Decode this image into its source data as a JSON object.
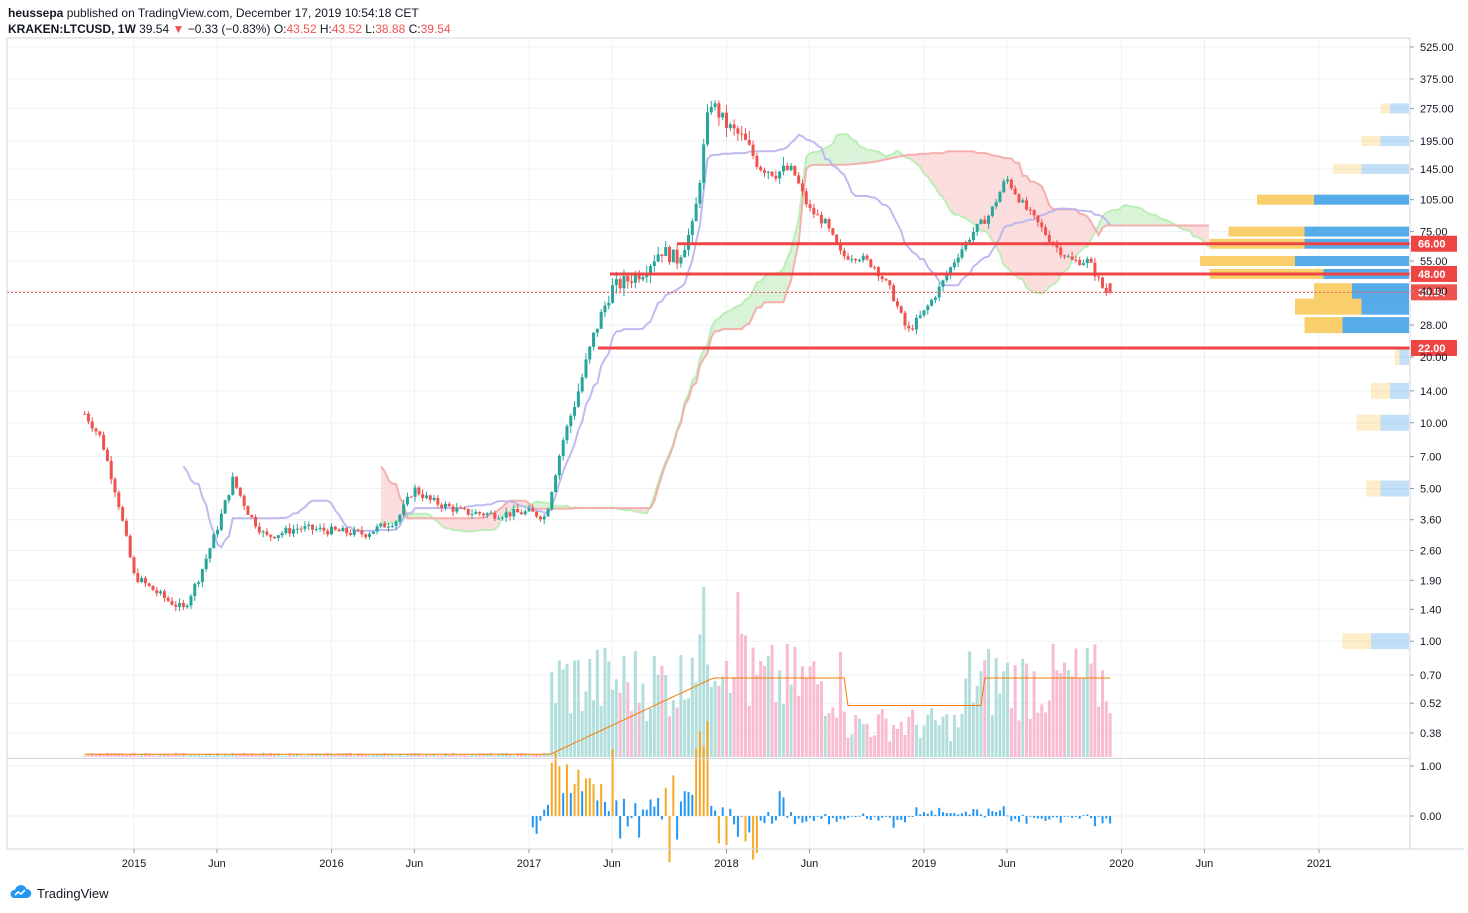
{
  "header": {
    "author": "heussepa",
    "published": "published on TradingView.com, December 17, 2019 10:54:18 CET",
    "symbol": "KRAKEN:LTCUSD, 1W",
    "last": "39.54",
    "arrow": "▼",
    "change": "−0.33 (−0.83%)",
    "o_label": "O:",
    "o": "43.52",
    "h_label": "H:",
    "h": "43.52",
    "l_label": "L:",
    "l": "38.88",
    "c_label": "C:",
    "c": "39.54"
  },
  "footer": {
    "brand": "TradingView",
    "logo_icon": "tradingview-cloud-icon"
  },
  "colors": {
    "up": "#26a69a",
    "down": "#ef5350",
    "level": "#ef4444",
    "vp_up": "#4da7e8",
    "vp_down": "#f9cc63",
    "vol_up": "#b2dfdb",
    "vol_down": "#f8bbd0",
    "kumo_red": "#fbd5d5",
    "kumo_green": "#d0f0d0",
    "tenkan": "#b9b2f0",
    "span_a": "#b6edb0",
    "span_b": "#f4a8a8",
    "vol_ma": "#f57c00"
  },
  "chart_data": {
    "type": "candlestick",
    "symbol": "KRAKEN:LTCUSD",
    "interval": "1W",
    "y_scale": "log",
    "y_ticks": [
      525,
      375,
      275,
      195,
      145,
      105,
      75,
      55,
      40,
      28,
      20,
      14,
      10,
      7,
      5,
      3.6,
      2.6,
      1.9,
      1.4,
      1.0,
      0.7,
      0.52,
      0.38
    ],
    "x_ticks": [
      "2015",
      "Jun",
      "2016",
      "Jun",
      "2017",
      "Jun",
      "2018",
      "Jun",
      "2019",
      "Jun",
      "2020",
      "Jun",
      "2021"
    ],
    "oscillator_ticks": [
      1.0,
      0.0
    ],
    "last_price": 39.54,
    "horizontal_levels": [
      66.0,
      48.0,
      22.0
    ],
    "price_path": [
      [
        "2014-10",
        11
      ],
      [
        "2014-11",
        8.5
      ],
      [
        "2014-12",
        4.5
      ],
      [
        "2015-01",
        2.0
      ],
      [
        "2015-02",
        1.75
      ],
      [
        "2015-03",
        1.55
      ],
      [
        "2015-04",
        1.4
      ],
      [
        "2015-05",
        2.0
      ],
      [
        "2015-06",
        3.2
      ],
      [
        "2015-07",
        5.5
      ],
      [
        "2015-08",
        3.8
      ],
      [
        "2015-09",
        3.0
      ],
      [
        "2015-11",
        3.3
      ],
      [
        "2016-01",
        3.2
      ],
      [
        "2016-03",
        3.1
      ],
      [
        "2016-05",
        3.6
      ],
      [
        "2016-06",
        5.0
      ],
      [
        "2016-07",
        4.4
      ],
      [
        "2016-09",
        3.9
      ],
      [
        "2016-11",
        3.8
      ],
      [
        "2017-01",
        3.9
      ],
      [
        "2017-02",
        3.7
      ],
      [
        "2017-03",
        8.0
      ],
      [
        "2017-04",
        14.0
      ],
      [
        "2017-05",
        26.0
      ],
      [
        "2017-06",
        41.0
      ],
      [
        "2017-07",
        45.0
      ],
      [
        "2017-08",
        50.0
      ],
      [
        "2017-09",
        62.0
      ],
      [
        "2017-10",
        56.0
      ],
      [
        "2017-11",
        80.0
      ],
      [
        "2017-12",
        300.0
      ],
      [
        "2018-01",
        230.0
      ],
      [
        "2018-02",
        200.0
      ],
      [
        "2018-03",
        150.0
      ],
      [
        "2018-04",
        140.0
      ],
      [
        "2018-05",
        145.0
      ],
      [
        "2018-06",
        95.0
      ],
      [
        "2018-07",
        82.0
      ],
      [
        "2018-08",
        58.0
      ],
      [
        "2018-09",
        58.0
      ],
      [
        "2018-10",
        52.0
      ],
      [
        "2018-11",
        40.0
      ],
      [
        "2018-12",
        26.0
      ],
      [
        "2019-01",
        32.0
      ],
      [
        "2019-02",
        42.0
      ],
      [
        "2019-03",
        58.0
      ],
      [
        "2019-04",
        75.0
      ],
      [
        "2019-05",
        90.0
      ],
      [
        "2019-06",
        132.0
      ],
      [
        "2019-07",
        100.0
      ],
      [
        "2019-08",
        80.0
      ],
      [
        "2019-09",
        64.0
      ],
      [
        "2019-10",
        55.0
      ],
      [
        "2019-11",
        55.0
      ],
      [
        "2019-12",
        39.54
      ]
    ],
    "volume_profile": [
      {
        "price": 275,
        "up": 2,
        "down": 1
      },
      {
        "price": 195,
        "up": 3,
        "down": 2
      },
      {
        "price": 145,
        "up": 5,
        "down": 3
      },
      {
        "price": 105,
        "up": 10,
        "down": 6
      },
      {
        "price": 75,
        "up": 11,
        "down": 8
      },
      {
        "price": 66,
        "up": 11,
        "down": 10
      },
      {
        "price": 55,
        "up": 12,
        "down": 10
      },
      {
        "price": 48,
        "up": 9,
        "down": 12
      },
      {
        "price": 40,
        "up": 6,
        "down": 4
      },
      {
        "price": 34,
        "up": 5,
        "down": 7
      },
      {
        "price": 28,
        "up": 7,
        "down": 4
      },
      {
        "price": 20,
        "up": 1,
        "down": 0.5
      },
      {
        "price": 14,
        "up": 2,
        "down": 2
      },
      {
        "price": 10,
        "up": 3,
        "down": 2.5
      },
      {
        "price": 5,
        "up": 3,
        "down": 1.5
      },
      {
        "price": 1,
        "up": 4,
        "down": 3
      }
    ]
  }
}
